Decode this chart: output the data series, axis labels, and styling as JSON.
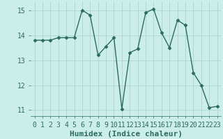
{
  "x": [
    0,
    1,
    2,
    3,
    4,
    5,
    6,
    7,
    8,
    9,
    10,
    11,
    12,
    13,
    14,
    15,
    16,
    17,
    18,
    19,
    20,
    21,
    22,
    23
  ],
  "y": [
    13.8,
    13.8,
    13.8,
    13.9,
    13.9,
    13.9,
    15.0,
    14.8,
    13.2,
    13.55,
    13.9,
    11.05,
    13.3,
    13.45,
    14.9,
    15.05,
    14.1,
    13.5,
    14.6,
    14.4,
    12.5,
    12.0,
    11.1,
    11.15
  ],
  "line_color": "#2a6b60",
  "bg_color": "#cceee8",
  "grid_color": "#aad4cc",
  "xlabel": "Humidex (Indice chaleur)",
  "ylim": [
    10.75,
    15.35
  ],
  "xlim": [
    -0.5,
    23.5
  ],
  "yticks": [
    11,
    12,
    13,
    14,
    15
  ],
  "xticks": [
    0,
    1,
    2,
    3,
    4,
    5,
    6,
    7,
    8,
    9,
    10,
    11,
    12,
    13,
    14,
    15,
    16,
    17,
    18,
    19,
    20,
    21,
    22,
    23
  ],
  "marker_size": 2.5,
  "line_width": 1.0,
  "xlabel_fontsize": 8,
  "tick_fontsize": 7
}
